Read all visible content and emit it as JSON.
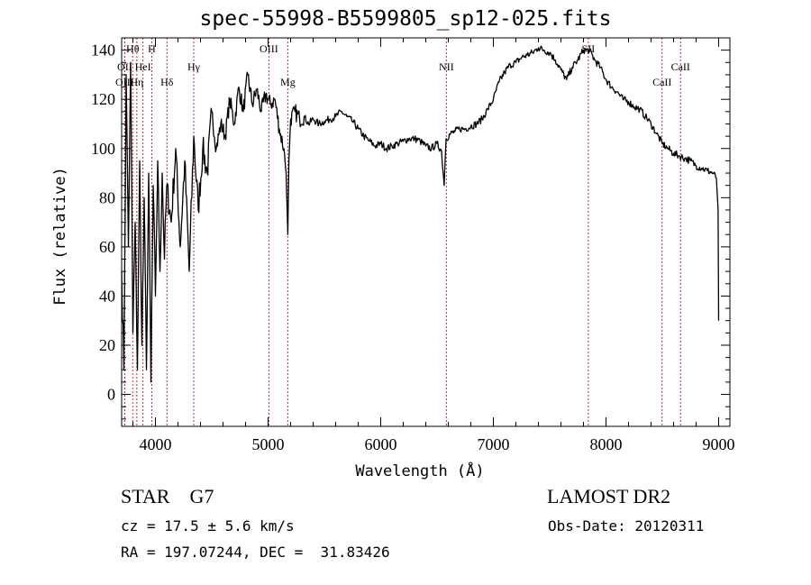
{
  "chart_data": {
    "type": "line",
    "title": "spec-55998-B5599805_sp12-025.fits",
    "xlabel": "Wavelength (Å)",
    "ylabel": "Flux (relative)",
    "xlim": [
      3700,
      9100
    ],
    "ylim": [
      -13,
      145
    ],
    "xticks": [
      4000,
      5000,
      6000,
      7000,
      8000,
      9000
    ],
    "yticks": [
      0,
      20,
      40,
      60,
      80,
      100,
      120,
      140
    ],
    "x_minor_step": 200,
    "y_minor_step": 5,
    "series": [
      {
        "x": [
          3700,
          3720,
          3740,
          3760,
          3780,
          3800,
          3820,
          3840,
          3860,
          3880,
          3900,
          3920,
          3940,
          3960,
          3980,
          4000,
          4020,
          4040,
          4060,
          4080,
          4100,
          4140,
          4180,
          4220,
          4260,
          4300,
          4340,
          4380,
          4420,
          4460,
          4500,
          4540,
          4580,
          4620,
          4660,
          4700,
          4740,
          4780,
          4820,
          4860,
          4900,
          4940,
          4980,
          5020,
          5060,
          5100,
          5140,
          5160,
          5175,
          5185,
          5200,
          5240,
          5280,
          5320,
          5360,
          5400,
          5450,
          5500,
          5550,
          5600,
          5650,
          5700,
          5750,
          5800,
          5850,
          5900,
          5950,
          6000,
          6050,
          6100,
          6150,
          6200,
          6250,
          6300,
          6350,
          6400,
          6450,
          6500,
          6540,
          6563,
          6580,
          6620,
          6660,
          6700,
          6750,
          6800,
          6850,
          6900,
          6950,
          7000,
          7050,
          7100,
          7150,
          7200,
          7250,
          7300,
          7350,
          7400,
          7450,
          7500,
          7550,
          7600,
          7650,
          7700,
          7750,
          7800,
          7850,
          7900,
          7950,
          8000,
          8050,
          8100,
          8150,
          8200,
          8250,
          8300,
          8350,
          8400,
          8450,
          8500,
          8550,
          8600,
          8650,
          8700,
          8750,
          8800,
          8850,
          8900,
          8950,
          8980,
          8995,
          9000
        ],
        "y": [
          50,
          10,
          130,
          60,
          135,
          25,
          70,
          10,
          95,
          20,
          80,
          10,
          90,
          5,
          85,
          40,
          95,
          50,
          90,
          55,
          85,
          70,
          100,
          60,
          95,
          50,
          105,
          75,
          100,
          90,
          115,
          100,
          110,
          105,
          120,
          110,
          125,
          115,
          130,
          118,
          124,
          115,
          122,
          118,
          120,
          108,
          100,
          90,
          65,
          95,
          112,
          115,
          112,
          113,
          110,
          112,
          110,
          111,
          112,
          113,
          115,
          113,
          111,
          108,
          105,
          103,
          101,
          102,
          100,
          101,
          102,
          103,
          104,
          104,
          103,
          101,
          100,
          102,
          99,
          85,
          104,
          106,
          107,
          108,
          108,
          109,
          110,
          112,
          116,
          120,
          127,
          131,
          134,
          135,
          137,
          138,
          139,
          141,
          140,
          139,
          136,
          132,
          128,
          133,
          136,
          140,
          140,
          136,
          133,
          128,
          125,
          123,
          120,
          119,
          117,
          116,
          113,
          110,
          106,
          102,
          100,
          98,
          97,
          96,
          95,
          93,
          92,
          91,
          90,
          88,
          75,
          30
        ]
      }
    ],
    "line_markers": [
      {
        "label": "Hθ",
        "wavelength": 3798,
        "row": 0
      },
      {
        "label": "H",
        "wavelength": 3968,
        "row": 0
      },
      {
        "label": "OII",
        "wavelength": 3727,
        "row": 1
      },
      {
        "label": "HeI",
        "wavelength": 3889,
        "row": 1
      },
      {
        "label": "OIII",
        "wavelength": 3727,
        "row": 2
      },
      {
        "label": "Hη",
        "wavelength": 3835,
        "row": 2
      },
      {
        "label": "Hδ",
        "wavelength": 4102,
        "row": 2
      },
      {
        "label": "Hγ",
        "wavelength": 4340,
        "row": 1
      },
      {
        "label": "OIII",
        "wavelength": 5007,
        "row": 0
      },
      {
        "label": "Mg",
        "wavelength": 5175,
        "row": 2
      },
      {
        "label": "NII",
        "wavelength": 6583,
        "row": 1
      },
      {
        "label": "SII",
        "wavelength": 7843,
        "row": 0
      },
      {
        "label": "CaII",
        "wavelength": 8662,
        "row": 1
      },
      {
        "label": "CaII",
        "wavelength": 8498,
        "row": 2
      }
    ],
    "marker_color": "#b22222",
    "line_color": "#000000",
    "grid": false,
    "legend": false
  },
  "info": {
    "object_class": "STAR",
    "subclass": "G7",
    "survey": "LAMOST DR2",
    "cz": "cz = 17.5 ± 5.6 km/s",
    "obs_date": "Obs-Date: 20120311",
    "coords": "RA = 197.07244, DEC =  31.83426"
  }
}
